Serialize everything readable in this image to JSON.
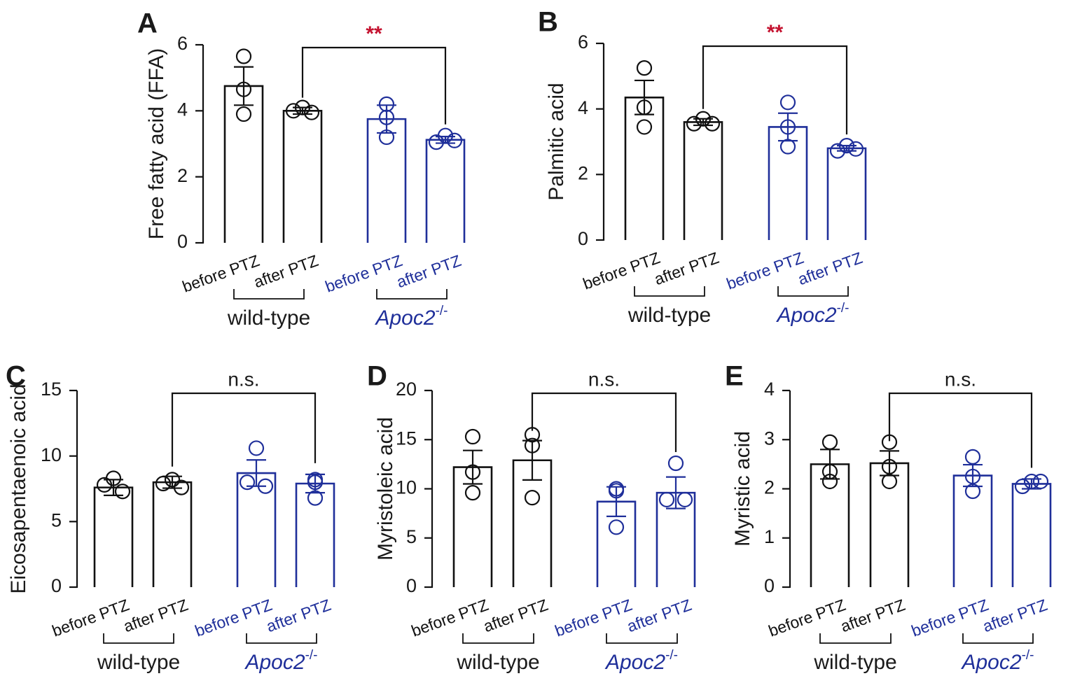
{
  "colors": {
    "wildtype": "#111111",
    "knockout": "#1f2f9a",
    "significance": "#c4122f"
  },
  "group_labels": {
    "wildtype": "wild-type",
    "knockout_base": "Apoc2",
    "knockout_sup": "-/-"
  },
  "chart_data": [
    {
      "panel": "A",
      "type": "bar",
      "ylabel": "Free fatty acid (FFA)",
      "ylim": [
        0,
        6
      ],
      "yticks": [
        0,
        2,
        4,
        6
      ],
      "ytick_labels": [
        "0",
        "2",
        "4",
        "6"
      ],
      "categories": [
        "before PTZ",
        "after PTZ",
        "before PTZ",
        "after PTZ"
      ],
      "groups": [
        "wild-type",
        "wild-type",
        "Apoc2-/-",
        "Apoc2-/-"
      ],
      "means": [
        4.75,
        4.0,
        3.75,
        3.12
      ],
      "sem": [
        0.58,
        0.1,
        0.42,
        0.1
      ],
      "points": [
        [
          5.65,
          4.65,
          3.9
        ],
        [
          4.1,
          4.0,
          3.95
        ],
        [
          4.2,
          3.8,
          3.2
        ],
        [
          3.25,
          3.05,
          3.1
        ]
      ],
      "comparison": {
        "from": 1,
        "to": 3,
        "label": "**"
      }
    },
    {
      "panel": "B",
      "type": "bar",
      "ylabel": "Palmitic acid",
      "ylim": [
        0,
        6
      ],
      "yticks": [
        0,
        2,
        4,
        6
      ],
      "ytick_labels": [
        "0",
        "2",
        "4",
        "6"
      ],
      "categories": [
        "before PTZ",
        "after PTZ",
        "before PTZ",
        "after PTZ"
      ],
      "groups": [
        "wild-type",
        "wild-type",
        "Apoc2-/-",
        "Apoc2-/-"
      ],
      "means": [
        4.35,
        3.6,
        3.45,
        2.8
      ],
      "sem": [
        0.52,
        0.1,
        0.42,
        0.08
      ],
      "points": [
        [
          5.25,
          4.05,
          3.45
        ],
        [
          3.7,
          3.55,
          3.55
        ],
        [
          4.2,
          3.45,
          2.85
        ],
        [
          2.88,
          2.72,
          2.78
        ]
      ],
      "comparison": {
        "from": 1,
        "to": 3,
        "label": "**"
      }
    },
    {
      "panel": "C",
      "type": "bar",
      "ylabel": "Eicosapentaenoic acid",
      "ylim": [
        0,
        15
      ],
      "yticks": [
        0,
        5,
        10,
        15
      ],
      "ytick_labels": [
        "0",
        "5",
        "10",
        "15"
      ],
      "categories": [
        "before PTZ",
        "after PTZ",
        "before PTZ",
        "after PTZ"
      ],
      "groups": [
        "wild-type",
        "wild-type",
        "Apoc2-/-",
        "Apoc2-/-"
      ],
      "means": [
        7.6,
        8.0,
        8.7,
        7.9
      ],
      "sem": [
        0.6,
        0.45,
        1.0,
        0.7
      ],
      "points": [
        [
          8.3,
          7.8,
          7.3
        ],
        [
          8.2,
          7.9,
          7.6
        ],
        [
          10.6,
          8.0,
          7.7
        ],
        [
          8.2,
          8.0,
          6.8
        ]
      ],
      "comparison": {
        "from": 1,
        "to": 3,
        "label": "n.s."
      }
    },
    {
      "panel": "D",
      "type": "bar",
      "ylabel": "Myristoleic acid",
      "ylim": [
        0,
        20
      ],
      "yticks": [
        0,
        5,
        10,
        15,
        20
      ],
      "ytick_labels": [
        "0",
        "5",
        "10",
        "15",
        "20"
      ],
      "categories": [
        "before PTZ",
        "after PTZ",
        "before PTZ",
        "after PTZ"
      ],
      "groups": [
        "wild-type",
        "wild-type",
        "Apoc2-/-",
        "Apoc2-/-"
      ],
      "means": [
        12.2,
        12.9,
        8.7,
        9.6
      ],
      "sem": [
        1.7,
        2.0,
        1.5,
        1.6
      ],
      "points": [
        [
          15.3,
          11.7,
          9.6
        ],
        [
          15.5,
          14.4,
          9.1
        ],
        [
          10.0,
          9.8,
          6.1
        ],
        [
          12.6,
          8.9,
          8.9
        ]
      ],
      "comparison": {
        "from": 1,
        "to": 3,
        "label": "n.s."
      }
    },
    {
      "panel": "E",
      "type": "bar",
      "ylabel": "Myristic acid",
      "ylim": [
        0,
        4
      ],
      "yticks": [
        0,
        1,
        2,
        3,
        4
      ],
      "ytick_labels": [
        "0",
        "1",
        "2",
        "3",
        "4"
      ],
      "categories": [
        "before PTZ",
        "after PTZ",
        "before PTZ",
        "after PTZ"
      ],
      "groups": [
        "wild-type",
        "wild-type",
        "Apoc2-/-",
        "Apoc2-/-"
      ],
      "means": [
        2.5,
        2.52,
        2.27,
        2.1
      ],
      "sem": [
        0.3,
        0.25,
        0.22,
        0.1
      ],
      "points": [
        [
          2.95,
          2.35,
          2.15
        ],
        [
          2.95,
          2.45,
          2.15
        ],
        [
          2.65,
          2.25,
          1.95
        ],
        [
          2.15,
          2.05,
          2.15
        ]
      ],
      "comparison": {
        "from": 1,
        "to": 3,
        "label": "n.s."
      }
    }
  ]
}
